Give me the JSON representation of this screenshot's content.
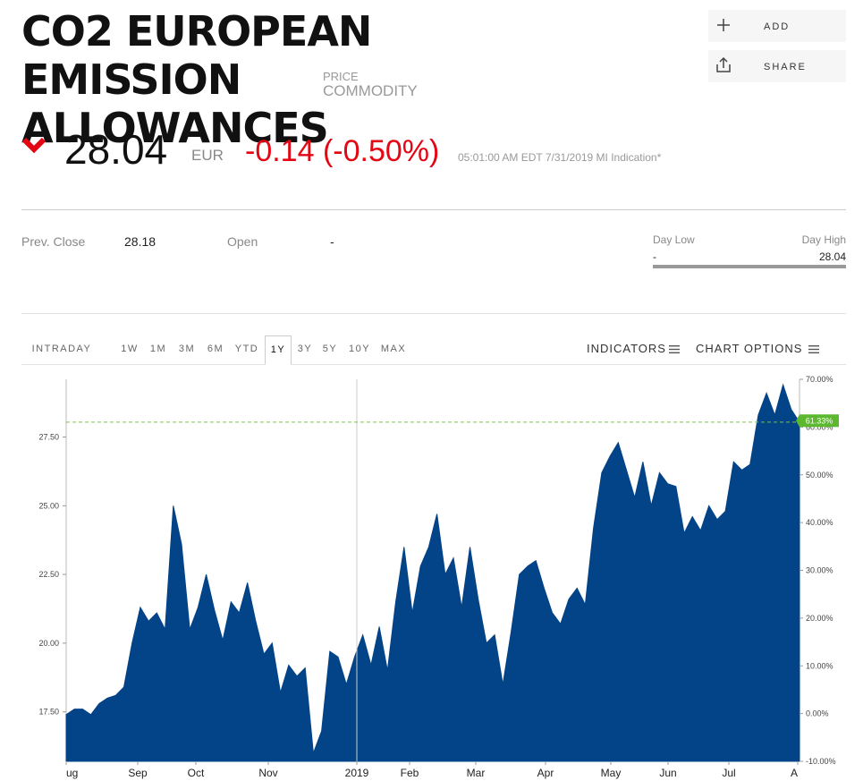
{
  "header": {
    "title_line1": "CO2 EUROPEAN EMISSION",
    "title_line2": "ALLOWANCES",
    "type_line1": "PRICE",
    "type_line2": "COMMODITY"
  },
  "actions": {
    "add_label": "ADD",
    "share_label": "SHARE"
  },
  "quote": {
    "price": "28.04",
    "currency": "EUR",
    "change": "-0.14 (-0.50%)",
    "timestamp": "05:01:00 AM EDT 7/31/2019 MI Indication*",
    "down_color": "#e30613"
  },
  "stats": {
    "prev_close_label": "Prev. Close",
    "prev_close_value": "28.18",
    "open_label": "Open",
    "open_value": "-",
    "day_low_label": "Day Low",
    "day_low_value": "-",
    "day_high_label": "Day High",
    "day_high_value": "28.04"
  },
  "chart_tabs": {
    "intraday": "INTRADAY",
    "ranges": [
      "1W",
      "1M",
      "3M",
      "6M",
      "YTD",
      "1Y",
      "3Y",
      "5Y",
      "10Y",
      "MAX"
    ],
    "active": "1Y",
    "indicators": "INDICATORS",
    "chart_options": "CHART OPTIONS"
  },
  "chart_data": {
    "type": "area",
    "title": "",
    "xlabel": "",
    "ylabel": "",
    "fill_color": "#034387",
    "x_labels": [
      "ug",
      "Sep",
      "Oct",
      "Nov",
      "2019",
      "Feb",
      "Mar",
      "Apr",
      "May",
      "Jun",
      "Jul",
      "A"
    ],
    "y_ticks_left": [
      "17.50",
      "20.00",
      "22.50",
      "25.00",
      "27.50"
    ],
    "y_ticks_right": [
      "-10.00%",
      "0.00%",
      "10.00%",
      "20.00%",
      "30.00%",
      "40.00%",
      "50.00%",
      "60.00%",
      "70.00%"
    ],
    "ylim_left": [
      15.7,
      29.6
    ],
    "ylim_right": [
      -10,
      70
    ],
    "current_change_label": "61.33%",
    "current_change": 61.33,
    "reference_value": 28.04,
    "series": [
      {
        "values": [
          17.4,
          17.6,
          17.6,
          17.4,
          17.8,
          18.0,
          18.1,
          18.4,
          20.0,
          21.3,
          20.8,
          21.1,
          20.5,
          25.0,
          23.6,
          20.5,
          21.3,
          22.5,
          21.2,
          20.1,
          21.5,
          21.1,
          22.2,
          20.8,
          19.6,
          20.0,
          18.2,
          19.2,
          18.8,
          19.1,
          16.0,
          16.8,
          19.7,
          19.5,
          18.5,
          19.5,
          20.3,
          19.2,
          20.6,
          19.0,
          21.5,
          23.5,
          21.1,
          22.8,
          23.5,
          24.7,
          22.5,
          23.1,
          21.3,
          23.5,
          21.6,
          20.0,
          20.3,
          18.5,
          20.4,
          22.5,
          22.8,
          23.0,
          22.0,
          21.1,
          20.7,
          21.6,
          22.0,
          21.4,
          24.2,
          26.2,
          26.8,
          27.3,
          26.3,
          25.3,
          26.6,
          25.0,
          26.2,
          25.8,
          25.7,
          24.0,
          24.6,
          24.1,
          25.0,
          24.5,
          24.8,
          26.6,
          26.3,
          26.5,
          28.3,
          29.1,
          28.3,
          29.4,
          28.5,
          28.04
        ],
        "note_date_range": "Aug 2018 - Jul 2019"
      }
    ],
    "grid": "vertical lines only at year boundary"
  }
}
